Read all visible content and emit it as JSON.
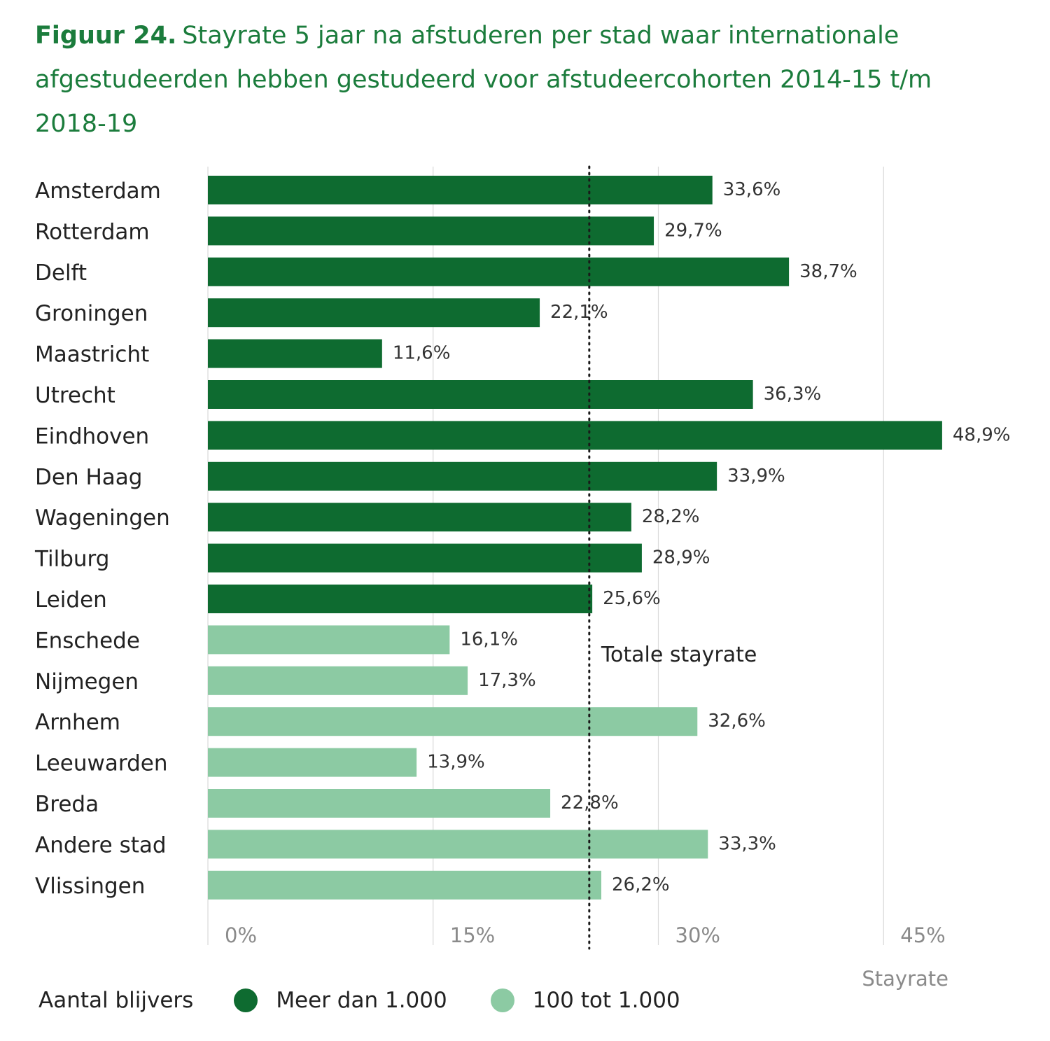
{
  "figure": {
    "label": "Figuur 24.",
    "text": "Stayrate 5 jaar na afstuderen per stad waar internationale afgestudeerden hebben gestudeerd voor afstudeercohorten 2014-15 t/m 2018-19"
  },
  "chart_data": {
    "type": "bar",
    "orientation": "horizontal",
    "xlabel": "Stayrate",
    "xlim": [
      0,
      50
    ],
    "xticks": [
      "0%",
      "15%",
      "30%",
      "45%"
    ],
    "xtick_values": [
      0,
      15,
      30,
      45
    ],
    "grid": true,
    "categories": [
      "Amsterdam",
      "Rotterdam",
      "Delft",
      "Groningen",
      "Maastricht",
      "Utrecht",
      "Eindhoven",
      "Den Haag",
      "Wageningen",
      "Tilburg",
      "Leiden",
      "Enschede",
      "Nijmegen",
      "Arnhem",
      "Leeuwarden",
      "Breda",
      "Andere stad",
      "Vlissingen"
    ],
    "values": [
      33.6,
      29.7,
      38.7,
      22.1,
      11.6,
      36.3,
      48.9,
      33.9,
      28.2,
      28.9,
      25.6,
      16.1,
      17.3,
      32.6,
      13.9,
      22.8,
      33.3,
      26.2
    ],
    "value_labels": [
      "33,6%",
      "29,7%",
      "38,7%",
      "22,1%",
      "11,6%",
      "36,3%",
      "48,9%",
      "33,9%",
      "28,2%",
      "28,9%",
      "25,6%",
      "16,1%",
      "17,3%",
      "32,6%",
      "13,9%",
      "22,8%",
      "33,3%",
      "26,2%"
    ],
    "groups": [
      "Meer dan 1.000",
      "Meer dan 1.000",
      "Meer dan 1.000",
      "Meer dan 1.000",
      "Meer dan 1.000",
      "Meer dan 1.000",
      "Meer dan 1.000",
      "Meer dan 1.000",
      "Meer dan 1.000",
      "Meer dan 1.000",
      "Meer dan 1.000",
      "100 tot 1.000",
      "100 tot 1.000",
      "100 tot 1.000",
      "100 tot 1.000",
      "100 tot 1.000",
      "100 tot 1.000",
      "100 tot 1.000"
    ],
    "reference_line": {
      "label": "Totale stayrate",
      "value": 25.4,
      "style": "dotted"
    },
    "legend": {
      "title": "Aantal blijvers",
      "placement": "bottom-left",
      "entries": [
        {
          "name": "Meer dan 1.000",
          "color": "#0e6b30"
        },
        {
          "name": "100 tot 1.000",
          "color": "#8ccaa3"
        }
      ]
    }
  },
  "colors": {
    "title": "#1b7c3c",
    "dark_bar": "#0e6b30",
    "light_bar": "#8ccaa3",
    "grid": "#d9d9d9",
    "tick": "#8a8a8a"
  }
}
